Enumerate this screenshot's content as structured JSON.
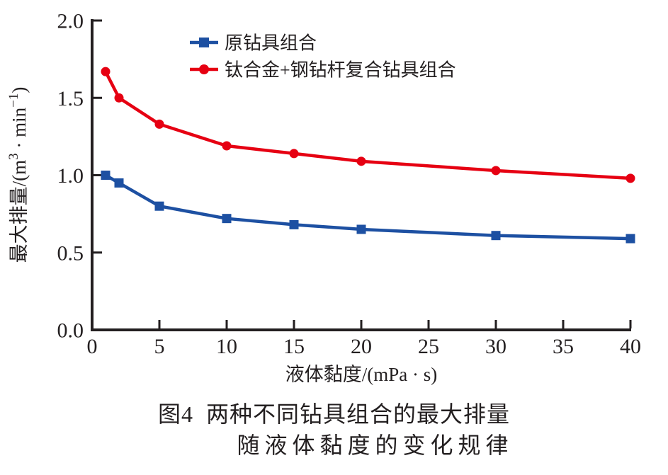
{
  "colors": {
    "blue": "#1d50a2",
    "red": "#e60012",
    "axis": "#231f20",
    "background": "#ffffff"
  },
  "chart_data": {
    "type": "line",
    "title": "",
    "x": [
      1,
      2,
      5,
      10,
      15,
      20,
      30,
      40
    ],
    "series": [
      {
        "name": "原钻具组合",
        "marker": "square",
        "color": "#1d50a2",
        "values": [
          1.0,
          0.95,
          0.8,
          0.72,
          0.68,
          0.65,
          0.61,
          0.59
        ]
      },
      {
        "name": "钛合金+钢钻杆复合钻具组合",
        "marker": "circle",
        "color": "#e60012",
        "values": [
          1.67,
          1.5,
          1.33,
          1.19,
          1.14,
          1.09,
          1.03,
          0.98
        ]
      }
    ],
    "xlabel": "液体黏度/(mPa·s)",
    "xlabel_parts": {
      "pre": "液体黏度/(mPa",
      "dot": " · ",
      "post": "s)"
    },
    "ylabel": "最大排量/(m³·min⁻¹)",
    "ylabel_parts": {
      "pre": "最大排量/(m",
      "sup1": "3",
      "dot": " · ",
      "mid": "min",
      "sup2": "−1",
      "post": ")"
    },
    "xlim": [
      0,
      40
    ],
    "ylim": [
      0.0,
      2.0
    ],
    "x_ticks": [
      0,
      5,
      10,
      15,
      20,
      25,
      30,
      35,
      40
    ],
    "y_ticks": [
      0.0,
      0.5,
      1.0,
      1.5,
      2.0
    ],
    "y_tick_labels": [
      "0.0",
      "0.5",
      "1.0",
      "1.5",
      "2.0"
    ],
    "grid": false,
    "legend_position": "inside-top-left"
  },
  "caption": {
    "line1": "图4  两种不同钻具组合的最大排量",
    "line2": "随液体黏度的变化规律"
  }
}
